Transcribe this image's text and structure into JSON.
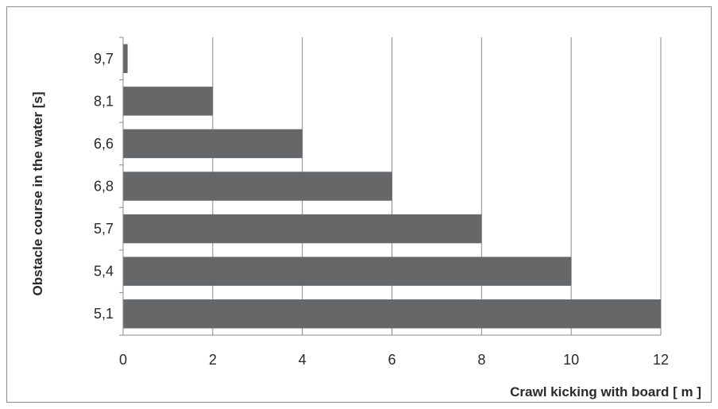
{
  "chart_data": {
    "type": "bar",
    "orientation": "horizontal",
    "categories": [
      "5,1",
      "5,4",
      "5,7",
      "6,8",
      "6,6",
      "8,1",
      "9,7"
    ],
    "values": [
      12,
      10,
      8,
      6,
      4,
      2,
      0.1
    ],
    "xlabel": "Crawl kicking with board [ m ]",
    "ylabel": "Obstacle course in the water [s]",
    "xlim": [
      0,
      12
    ],
    "xticks": [
      0,
      2,
      4,
      6,
      8,
      10,
      12
    ],
    "grid": "vertical",
    "legend": "none",
    "colors": {
      "bar": "#666769",
      "grid": "#8a8a8a",
      "axis": "#8a8a8a"
    }
  }
}
